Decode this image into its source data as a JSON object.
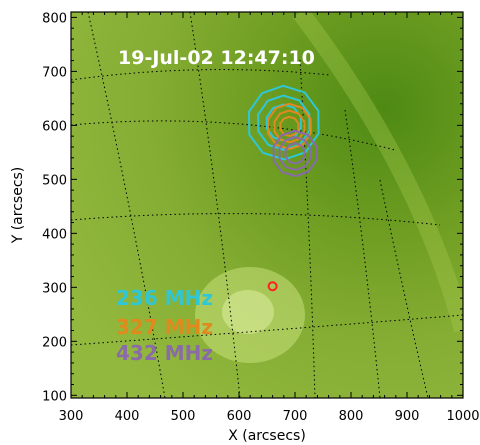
{
  "chart_data": {
    "type": "scatter",
    "title": "19-Jul-02 12:47:10",
    "xlabel": "X (arcsecs)",
    "ylabel": "Y (arcsecs)",
    "xlim": [
      300,
      1000
    ],
    "ylim": [
      95,
      810
    ],
    "x_ticks": [
      "300",
      "400",
      "500",
      "600",
      "700",
      "800",
      "900",
      "1000"
    ],
    "y_ticks": [
      "100",
      "200",
      "300",
      "400",
      "500",
      "600",
      "700",
      "800"
    ],
    "grid": "heliographic dotted grid",
    "colors": {
      "background": "#7fa62a",
      "grid": "#000000",
      "236 MHz": "#2fc6d6",
      "327 MHz": "#e08a1e",
      "432 MHz": "#8a6aa8",
      "marker": "#ff2020"
    },
    "legend": [
      "236 MHz",
      "327 MHz",
      "432 MHz"
    ],
    "legend_placement": "lower-left",
    "series": [
      {
        "name": "236 MHz",
        "center": [
          680,
          605
        ],
        "levels_arcsec": [
          65,
          48,
          32
        ]
      },
      {
        "name": "327 MHz",
        "center": [
          690,
          598
        ],
        "levels_arcsec": [
          40,
          28,
          17
        ]
      },
      {
        "name": "432 MHz",
        "center": [
          700,
          548
        ],
        "levels_arcsec": [
          40,
          29,
          18
        ]
      }
    ],
    "marker": {
      "x": 660,
      "y": 302
    }
  }
}
